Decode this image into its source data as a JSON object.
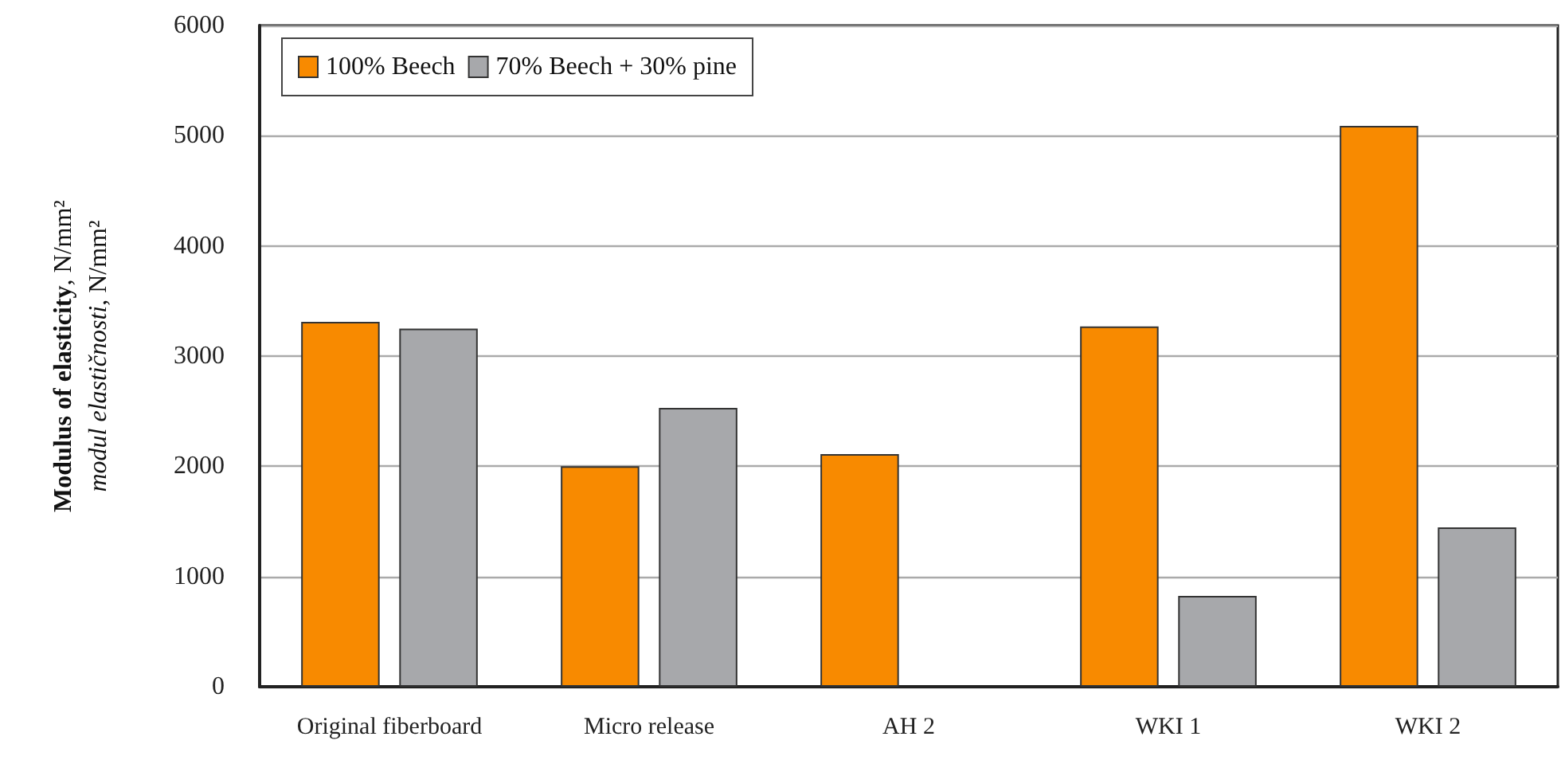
{
  "chart_data": {
    "type": "bar",
    "ylabel": "Modulus of elasticity, N/mm²\nmodul elastičnosti, N/mm²",
    "categories": [
      "Original fiberboard",
      "Micro release",
      "AH 2",
      "WKI 1",
      "WKI 2"
    ],
    "series": [
      {
        "name": "100% Beech",
        "color": "#f88a00",
        "values": [
          3310,
          2000,
          2110,
          3270,
          5090
        ]
      },
      {
        "name": "70% Beech + 30% pine",
        "color": "#a7a8ab",
        "values": [
          3250,
          2530,
          null,
          825,
          1445
        ]
      }
    ],
    "ylim": [
      0,
      6000
    ],
    "yticks": [
      0,
      1000,
      2000,
      3000,
      4000,
      5000,
      6000
    ],
    "grid": "y",
    "legend": "top left"
  }
}
